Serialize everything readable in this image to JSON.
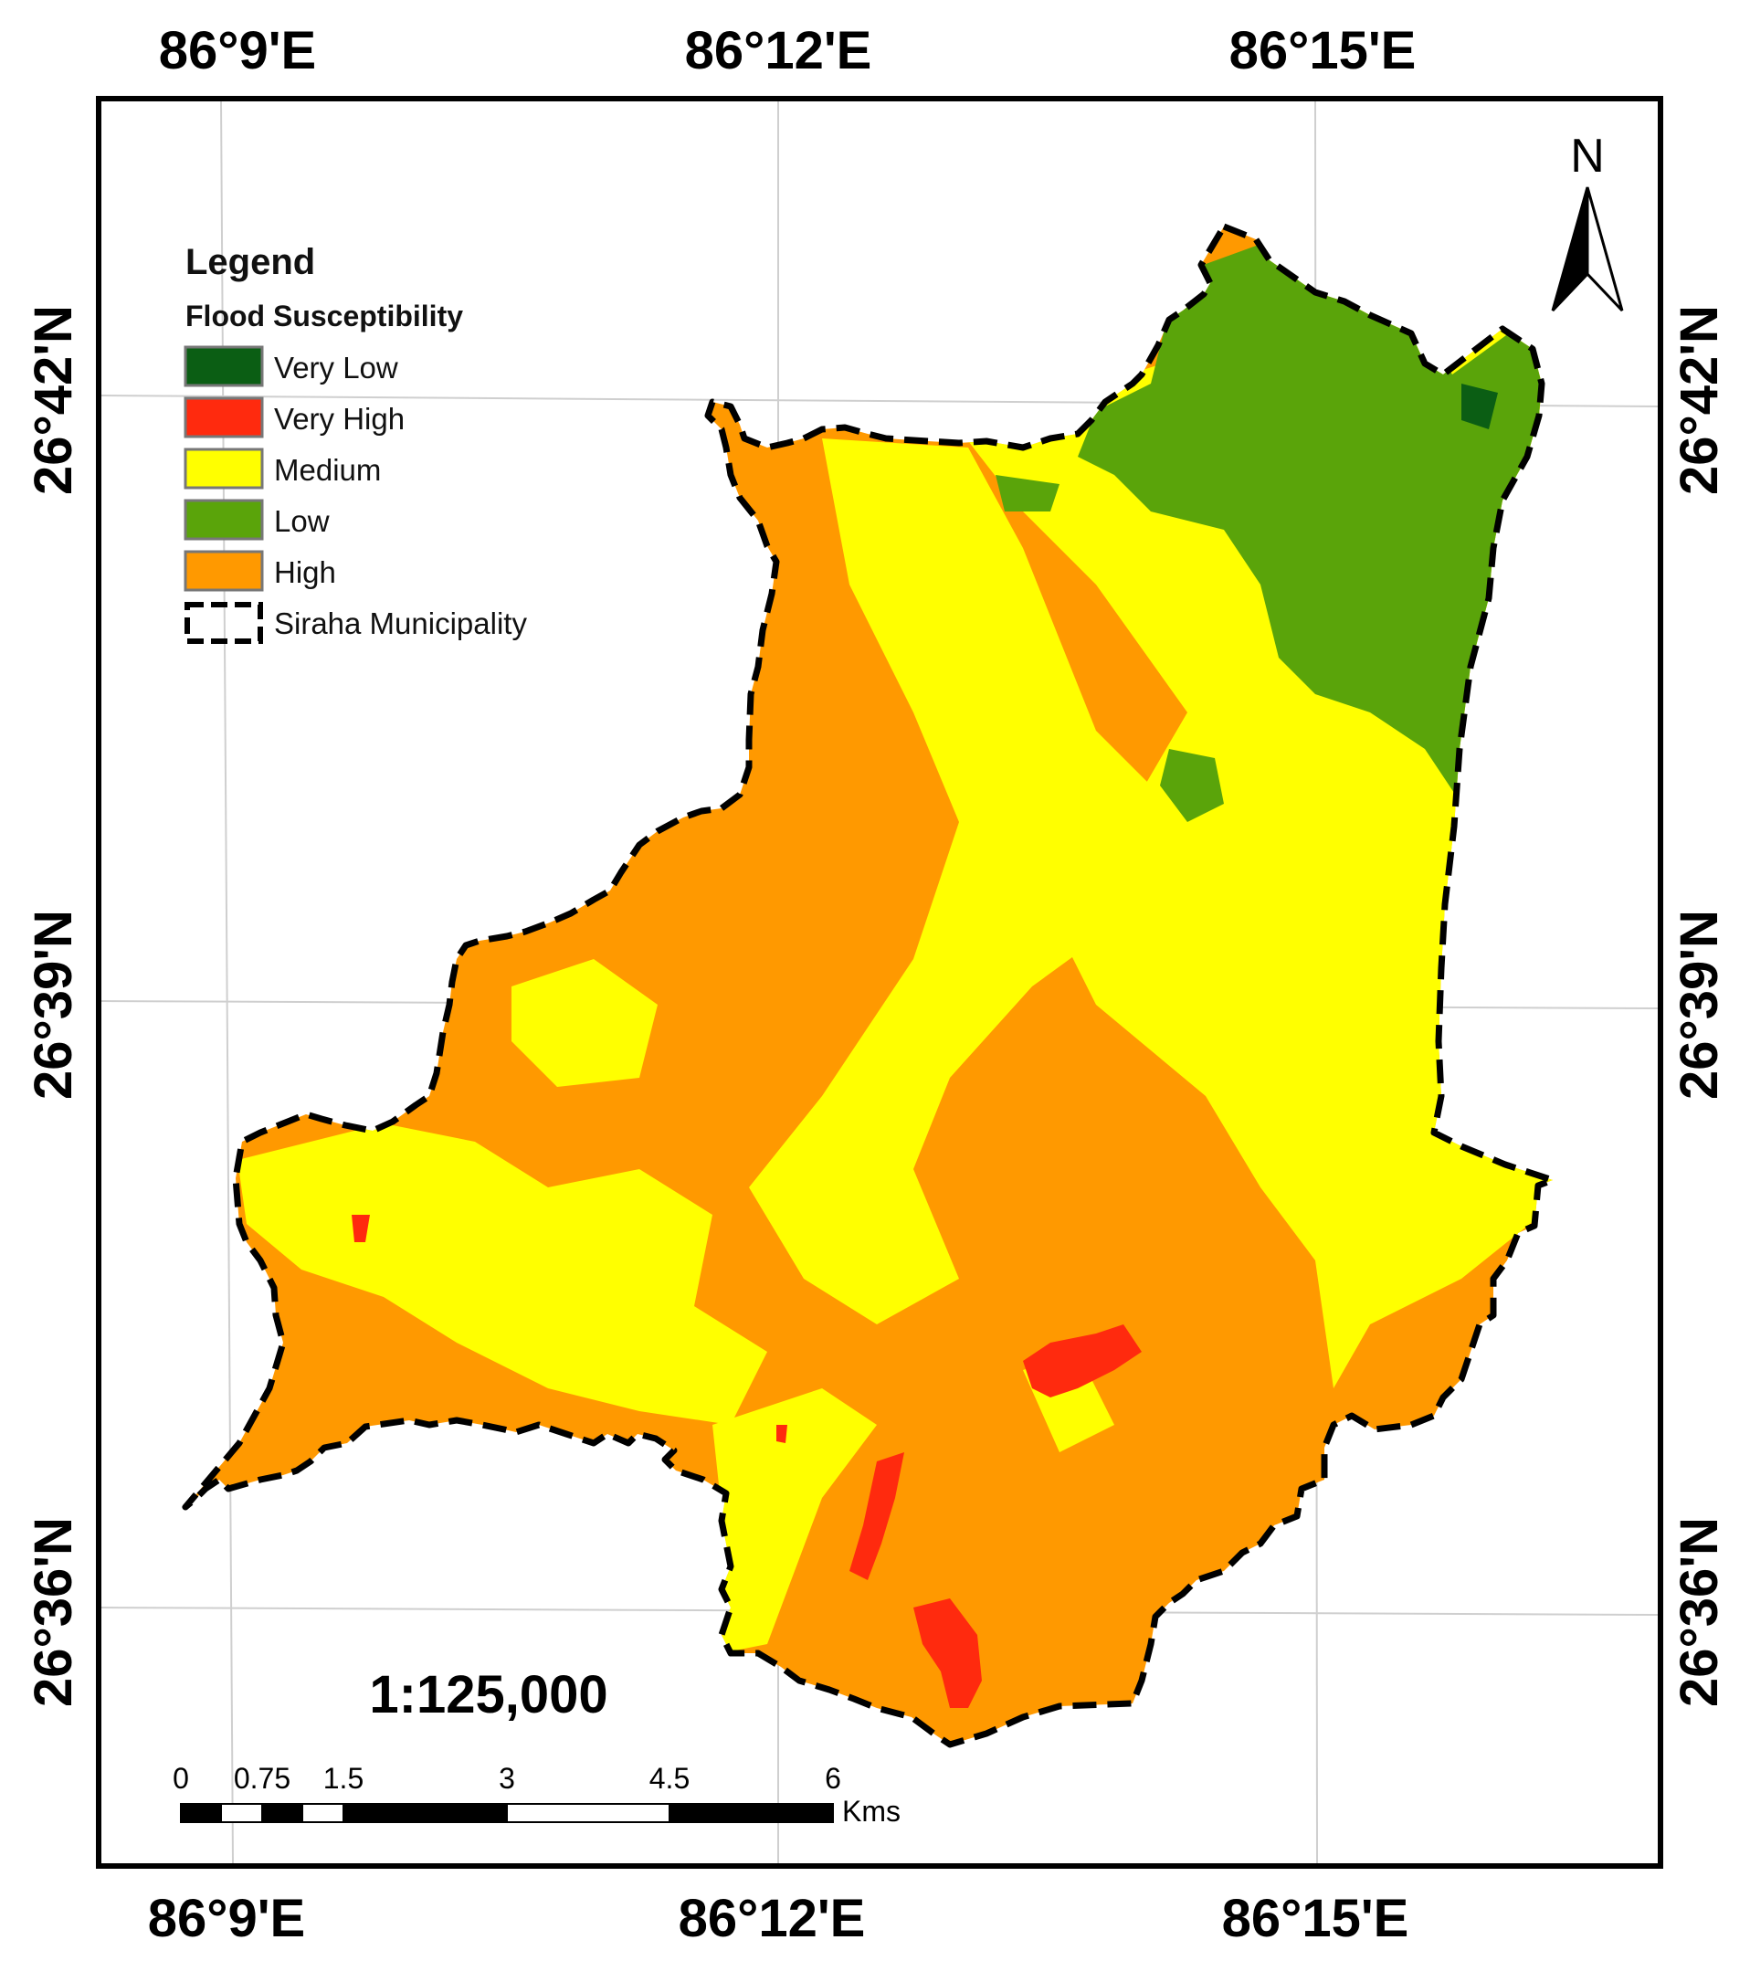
{
  "top_longitudes": [
    "86°9'E",
    "86°12'E",
    "86°15'E"
  ],
  "bottom_longitudes": [
    "86°9'E",
    "86°12'E",
    "86°15'E"
  ],
  "left_latitudes": [
    "26°42'N",
    "26°39'N",
    "26°36'N"
  ],
  "right_latitudes": [
    "26°42'N",
    "26°39'N",
    "26°36'N"
  ],
  "north_label": "N",
  "legend": {
    "title": "Legend",
    "subtitle": "Flood Susceptibility",
    "items": [
      {
        "label": "Very Low",
        "color": "#0b5e14"
      },
      {
        "label": "Very High",
        "color": "#ff2a0e"
      },
      {
        "label": "Medium",
        "color": "#ffff00"
      },
      {
        "label": "Low",
        "color": "#5aa40a"
      },
      {
        "label": "High",
        "color": "#ff9900"
      }
    ],
    "boundary_label": "Siraha Municipality"
  },
  "scale_ratio": "1:125,000",
  "scale_bar": {
    "labels": [
      "0",
      "0.75",
      "1.5",
      "3",
      "4.5",
      "6"
    ],
    "unit": "Kms"
  },
  "colors": {
    "very_low": "#0b5e14",
    "low": "#5aa40a",
    "medium": "#ffff00",
    "high": "#ff9900",
    "very_high": "#ff2a0e"
  }
}
